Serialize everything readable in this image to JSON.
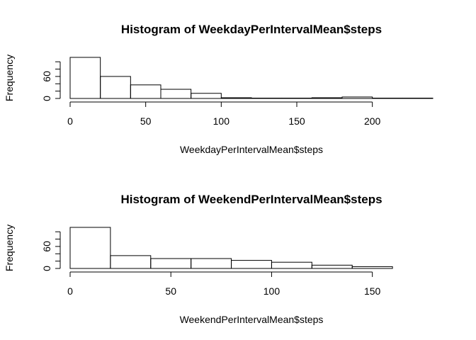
{
  "chart_data": [
    {
      "type": "bar",
      "title": "Histogram of WeekdayPerIntervalMean$steps",
      "xlabel": "WeekdayPerIntervalMean$steps",
      "ylabel": "Frequency",
      "bin_edges": [
        0,
        20,
        40,
        60,
        80,
        100,
        120,
        140,
        160,
        180,
        200,
        220,
        240
      ],
      "values": [
        112,
        60,
        37,
        25,
        14,
        2,
        1,
        1,
        2,
        4,
        1,
        1
      ],
      "xlim": [
        0,
        240
      ],
      "ylim": [
        0,
        112
      ],
      "x_ticks": [
        0,
        50,
        100,
        150,
        200
      ],
      "y_ticks": [
        0,
        60
      ]
    },
    {
      "type": "bar",
      "title": "Histogram of WeekendPerIntervalMean$steps",
      "xlabel": "WeekendPerIntervalMean$steps",
      "ylabel": "Frequency",
      "bin_edges": [
        0,
        20,
        40,
        60,
        80,
        100,
        120,
        140,
        160,
        180
      ],
      "values": [
        112,
        35,
        27,
        27,
        22,
        17,
        9,
        5,
        0
      ],
      "xlim": [
        0,
        180
      ],
      "ylim": [
        0,
        112
      ],
      "x_ticks": [
        0,
        50,
        100,
        150
      ],
      "y_ticks": [
        0,
        60
      ]
    }
  ]
}
